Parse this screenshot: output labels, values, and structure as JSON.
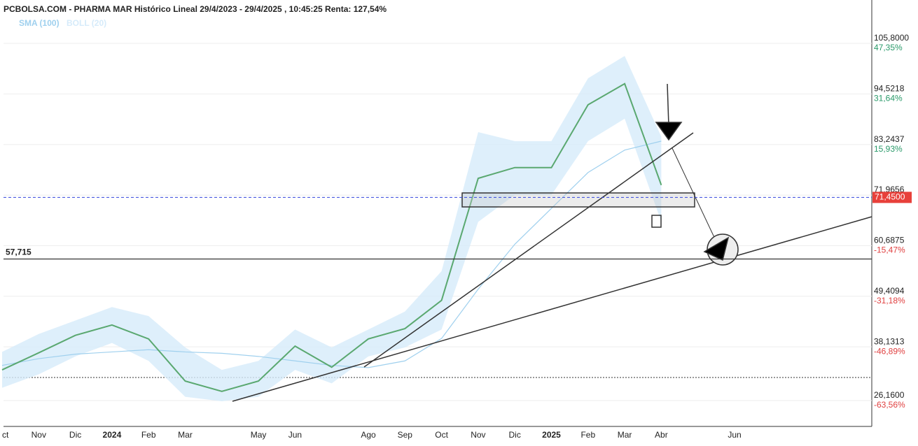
{
  "chart_data": {
    "type": "line",
    "title": "PCBOLSA.COM - PHARMA MAR Histórico Lineal 29/4/2023 - 29/4/2025 , 10:45:25 Renta: 127,54%",
    "categories": [
      "ct",
      "Nov",
      "Dic",
      "2024",
      "Feb",
      "Mar",
      null,
      "May",
      "Jun",
      null,
      "Ago",
      "Sep",
      "Oct",
      "Nov",
      "Dic",
      "2025",
      "Feb",
      "Mar",
      "Abr",
      null,
      "Jun"
    ],
    "values": [
      33,
      36.8,
      40.7,
      43,
      39.9,
      30.5,
      28.2,
      30.5,
      38.3,
      33.6,
      39.9,
      42.2,
      48.5,
      75.7,
      78.1,
      78.1,
      92.1,
      96.8,
      74.2,
      null,
      null
    ],
    "color": "#5aa870",
    "overlays": [
      {
        "name": "SMA (100)",
        "color": "#9fd0ee",
        "values": [
          34,
          35.5,
          36.5,
          37,
          37.5,
          37,
          36.7,
          36,
          35,
          34,
          33.5,
          35,
          40,
          51,
          61,
          69,
          77,
          82,
          84,
          null,
          null
        ]
      },
      {
        "name": "BOLL (20)",
        "color": "#d6ebfa",
        "upper": [
          37,
          41,
          44,
          47,
          45,
          38,
          33,
          35,
          42,
          38,
          42,
          46,
          55,
          86,
          84,
          84,
          98,
          103,
          85,
          null,
          null
        ],
        "lower": [
          29,
          32,
          36,
          39,
          35,
          27,
          26,
          27,
          33,
          30,
          36,
          38,
          42,
          66,
          72,
          72,
          84,
          89,
          66,
          null,
          null
        ]
      }
    ],
    "ylim": [
      20.39,
      115.46
    ],
    "yticks": [
      {
        "value": 105.8,
        "label": "105,8000"
      },
      {
        "value": 94.5218,
        "label": "94,5218"
      },
      {
        "value": 83.2437,
        "label": "83,2437"
      },
      {
        "value": 71.9656,
        "label": "71,9656"
      },
      {
        "value": 60.6875,
        "label": "60,6875"
      },
      {
        "value": 49.4094,
        "label": "49,4094"
      },
      {
        "value": 38.1313,
        "label": "38,1313"
      },
      {
        "value": 26.16,
        "label": "26,1600"
      }
    ],
    "y2lim": [
      -71.6,
      60.8
    ],
    "y2ticks": [
      {
        "value": 47.35,
        "label": "47,35%"
      },
      {
        "value": 31.64,
        "label": "31,64%"
      },
      {
        "value": 15.93,
        "label": "15,93%"
      },
      {
        "value": -15.47,
        "label": "-15,47%"
      },
      {
        "value": -31.18,
        "label": "-31,18%"
      },
      {
        "value": -46.89,
        "label": "-46,89%"
      },
      {
        "value": -63.56,
        "label": "-63,56%"
      }
    ],
    "grid": true,
    "last_price": {
      "value": 71.45,
      "label": "71,4500",
      "color": "#e8403a"
    },
    "level_line": {
      "value": 57.715,
      "label": "57,715"
    }
  }
}
